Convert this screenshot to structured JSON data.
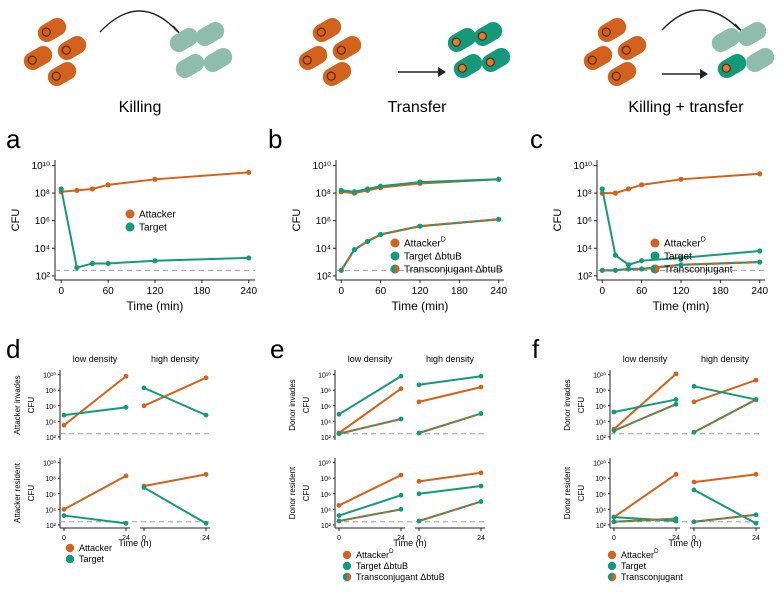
{
  "colors": {
    "attacker": "#d2621c",
    "target": "#139a7a",
    "target_pale": "#8ebcad",
    "dashed": "#9a9a9a",
    "axis": "#222222",
    "outline": "#5a2a0c",
    "dot": "#e07b34"
  },
  "illustrations": [
    {
      "label": "Killing"
    },
    {
      "label": "Transfer"
    },
    {
      "label": "Killing + transfer"
    }
  ],
  "panel_letters": [
    "a",
    "b",
    "c",
    "d",
    "e",
    "f"
  ],
  "chart_data": [
    {
      "panel": "a",
      "type": "line",
      "title": "",
      "xlabel": "Time (min)",
      "ylabel": "CFU",
      "xticks": [
        "0",
        "60",
        "120",
        "180",
        "240"
      ],
      "xtick_values": [
        0,
        60,
        120,
        180,
        240
      ],
      "yticks": [
        "10²",
        "10⁴",
        "10⁶",
        "10⁸",
        "10¹⁰"
      ],
      "ytick_values": [
        2,
        4,
        6,
        8,
        10
      ],
      "xlim": [
        -8,
        248
      ],
      "ylim_log10": [
        1.7,
        10.4
      ],
      "detection_limit_log10": 2.4,
      "x": [
        0,
        20,
        40,
        60,
        120,
        240
      ],
      "series": [
        {
          "name": "Attacker",
          "style": "solid",
          "color": "attacker",
          "log10_values": [
            8.1,
            8.2,
            8.3,
            8.6,
            9.0,
            9.5
          ]
        },
        {
          "name": "Target",
          "style": "solid",
          "color": "target",
          "log10_values": [
            8.3,
            2.6,
            2.9,
            2.9,
            3.1,
            3.3
          ]
        }
      ],
      "legend": [
        "Attacker",
        "Target"
      ]
    },
    {
      "panel": "b",
      "type": "line",
      "xlabel": "Time (min)",
      "ylabel": "CFU",
      "xticks": [
        "0",
        "60",
        "120",
        "180",
        "240"
      ],
      "xtick_values": [
        0,
        60,
        120,
        180,
        240
      ],
      "yticks": [
        "10²",
        "10⁴",
        "10⁶",
        "10⁸",
        "10¹⁰"
      ],
      "ytick_values": [
        2,
        4,
        6,
        8,
        10
      ],
      "xlim": [
        -8,
        248
      ],
      "ylim_log10": [
        1.7,
        10.4
      ],
      "detection_limit_log10": 2.4,
      "x": [
        0,
        20,
        40,
        60,
        120,
        240
      ],
      "series": [
        {
          "name": "Attacker^D",
          "style": "solid",
          "color": "attacker",
          "log10_values": [
            8.1,
            8.0,
            8.2,
            8.4,
            8.7,
            9.0
          ]
        },
        {
          "name": "Target ΔbtuB",
          "style": "solid",
          "color": "target",
          "log10_values": [
            8.2,
            8.1,
            8.3,
            8.5,
            8.8,
            9.0
          ]
        },
        {
          "name": "Transconjugant ΔbtuB",
          "style": "dashed",
          "color": "both",
          "log10_values": [
            2.4,
            3.9,
            4.5,
            5.0,
            5.6,
            6.1
          ]
        }
      ],
      "legend": [
        "Attacker^D",
        "Target ΔbtuB",
        "Transconjugant ΔbtuB"
      ]
    },
    {
      "panel": "c",
      "type": "line",
      "xlabel": "Time (min)",
      "ylabel": "CFU",
      "xticks": [
        "0",
        "60",
        "120",
        "180",
        "240"
      ],
      "xtick_values": [
        0,
        60,
        120,
        180,
        240
      ],
      "yticks": [
        "10²",
        "10⁴",
        "10⁶",
        "10⁸",
        "10¹⁰"
      ],
      "ytick_values": [
        2,
        4,
        6,
        8,
        10
      ],
      "xlim": [
        -8,
        248
      ],
      "ylim_log10": [
        1.7,
        10.4
      ],
      "detection_limit_log10": 2.4,
      "x": [
        0,
        20,
        40,
        60,
        120,
        240
      ],
      "series": [
        {
          "name": "Attacker^D",
          "style": "solid",
          "color": "attacker",
          "log10_values": [
            8.0,
            8.0,
            8.3,
            8.6,
            9.0,
            9.4
          ]
        },
        {
          "name": "Target",
          "style": "solid",
          "color": "target",
          "log10_values": [
            8.3,
            3.5,
            2.8,
            3.1,
            3.3,
            3.8
          ]
        },
        {
          "name": "Transconjugant",
          "style": "dashed",
          "color": "both",
          "log10_values": [
            2.4,
            2.4,
            2.5,
            2.5,
            2.8,
            3.0
          ]
        }
      ],
      "legend": [
        "Attacker^D",
        "Target",
        "Transconjugant"
      ]
    },
    {
      "panel": "d",
      "type": "line",
      "xlabel": "Time (h)",
      "ylabel": "CFU",
      "column_titles": [
        "low density",
        "high density"
      ],
      "row_titles": [
        "Attacker invades",
        "Attacker resident"
      ],
      "xticks": [
        "0",
        "24"
      ],
      "yticks": [
        "10²",
        "10⁴",
        "10⁶",
        "10⁸",
        "10¹⁰"
      ],
      "ytick_values": [
        2,
        4,
        6,
        8,
        10
      ],
      "ylim_log10": [
        1.6,
        10.6
      ],
      "detection_limit_log10": 2.4,
      "rows": [
        {
          "low": {
            "Attacker": [
              3.5,
              9.8
            ],
            "Target": [
              4.8,
              5.8
            ]
          },
          "high": {
            "Attacker": [
              6.0,
              9.6
            ],
            "Target": [
              8.3,
              4.8
            ]
          }
        },
        {
          "low": {
            "Attacker": [
              4.0,
              8.3
            ],
            "Target": [
              3.2,
              2.2
            ]
          },
          "high": {
            "Attacker": [
              7.0,
              8.5
            ],
            "Target": [
              6.8,
              2.2
            ]
          }
        }
      ],
      "legend": [
        "Attacker",
        "Target"
      ]
    },
    {
      "panel": "e",
      "type": "line",
      "xlabel": "Time (h)",
      "ylabel": "CFU",
      "column_titles": [
        "low density",
        "high density"
      ],
      "row_titles": [
        "Donor invades",
        "Donor resident"
      ],
      "xticks": [
        "0",
        "24"
      ],
      "yticks": [
        "10²",
        "10⁴",
        "10⁶",
        "10⁸",
        "10¹⁰"
      ],
      "ytick_values": [
        2,
        4,
        6,
        8,
        10
      ],
      "ylim_log10": [
        1.6,
        10.6
      ],
      "detection_limit_log10": 2.4,
      "rows": [
        {
          "low": {
            "Attacker^D": [
              2.5,
              8.2
            ],
            "Target ΔbtuB": [
              4.9,
              9.8
            ],
            "Transconjugant ΔbtuB": [
              2.4,
              4.3
            ]
          },
          "high": {
            "Attacker^D": [
              6.5,
              8.4
            ],
            "Target ΔbtuB": [
              8.7,
              9.8
            ],
            "Transconjugant ΔbtuB": [
              2.5,
              5.0
            ]
          }
        },
        {
          "low": {
            "Attacker^D": [
              4.5,
              8.4
            ],
            "Target ΔbtuB": [
              3.2,
              5.8
            ],
            "Transconjugant ΔbtuB": [
              2.5,
              4.0
            ]
          },
          "high": {
            "Attacker^D": [
              7.6,
              8.7
            ],
            "Target ΔbtuB": [
              6.0,
              7.0
            ],
            "Transconjugant ΔbtuB": [
              2.5,
              5.0
            ]
          }
        }
      ],
      "legend": [
        "Attacker^D",
        "Target ΔbtuB",
        "Transconjugant ΔbtuB"
      ]
    },
    {
      "panel": "f",
      "type": "line",
      "xlabel": "Time (h)",
      "ylabel": "CFU",
      "column_titles": [
        "low density",
        "high density"
      ],
      "row_titles": [
        "Donor invades",
        "Donor resident"
      ],
      "xticks": [
        "0",
        "24"
      ],
      "yticks": [
        "10²",
        "10⁴",
        "10⁶",
        "10⁸",
        "10¹⁰"
      ],
      "ytick_values": [
        2,
        4,
        6,
        8,
        10
      ],
      "ylim_log10": [
        1.6,
        10.6
      ],
      "detection_limit_log10": 2.4,
      "rows": [
        {
          "low": {
            "Attacker^D": [
              3.0,
              10.1
            ],
            "Target": [
              5.2,
              6.8
            ],
            "Transconjugant": [
              2.8,
              6.2
            ]
          },
          "high": {
            "Attacker^D": [
              6.5,
              9.3
            ],
            "Target": [
              8.5,
              6.8
            ],
            "Transconjugant": [
              2.6,
              6.8
            ]
          }
        },
        {
          "low": {
            "Attacker^D": [
              3.0,
              8.5
            ],
            "Target": [
              3.0,
              2.5
            ],
            "Transconjugant": [
              2.4,
              2.8
            ]
          },
          "high": {
            "Attacker^D": [
              7.5,
              8.5
            ],
            "Target": [
              6.5,
              2.2
            ],
            "Transconjugant": [
              2.4,
              3.3
            ]
          }
        }
      ],
      "legend": [
        "Attacker^D",
        "Target",
        "Transconjugant"
      ]
    }
  ]
}
